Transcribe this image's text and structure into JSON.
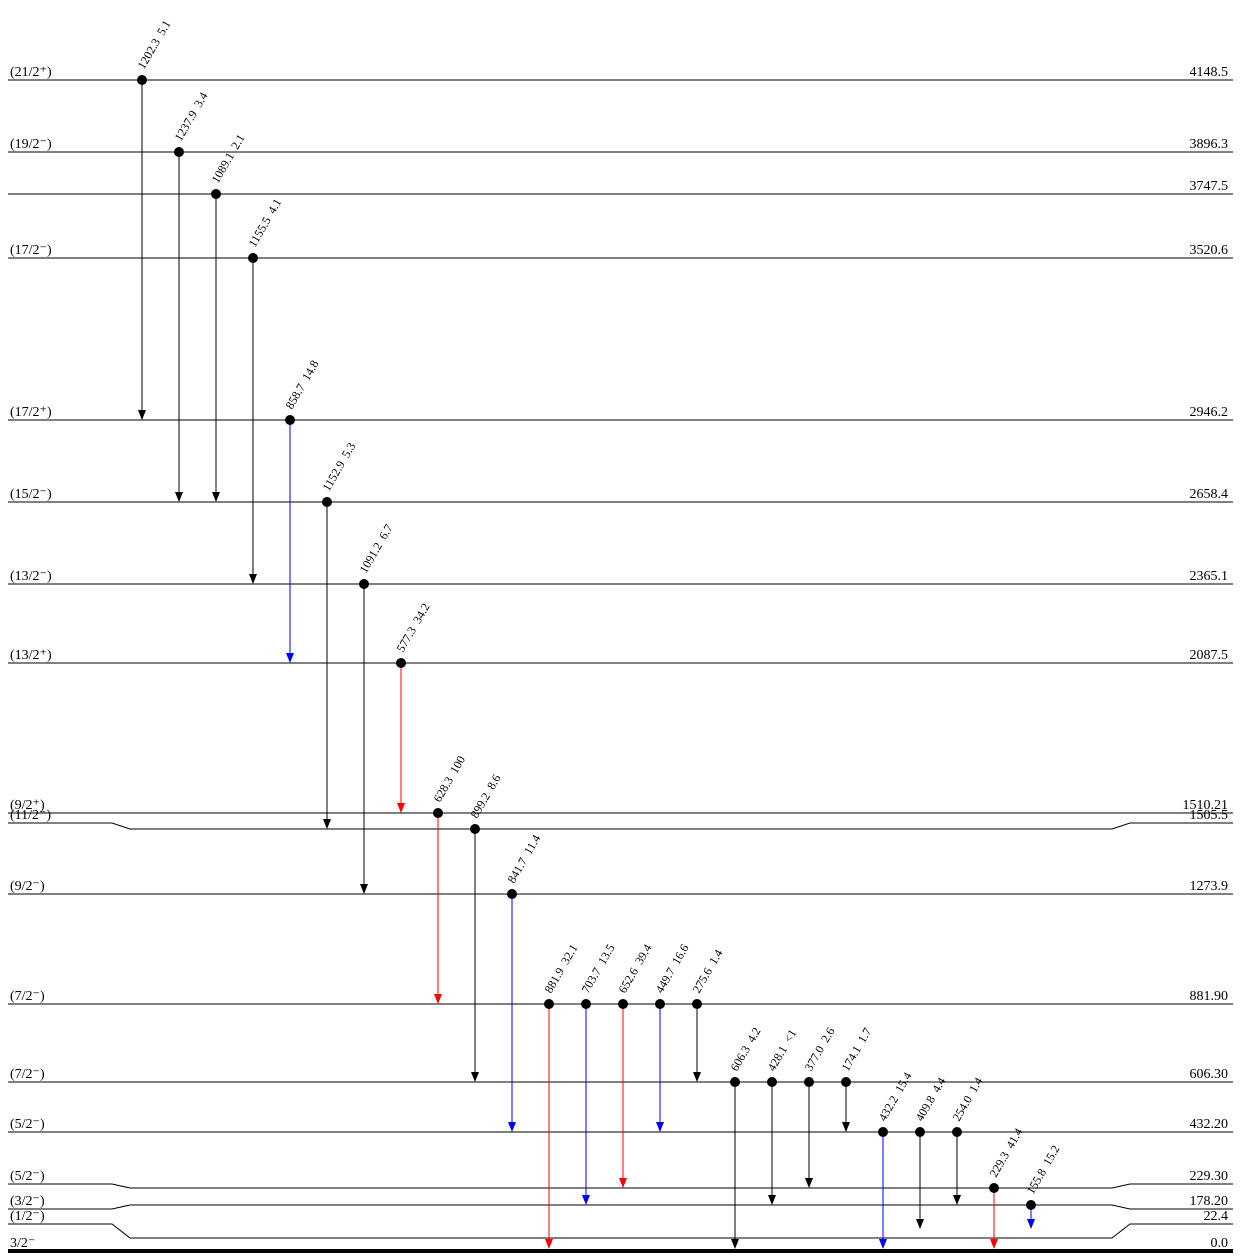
{
  "levels": [
    {
      "spin": "(21/2⁺)",
      "energy": "4148.5"
    },
    {
      "spin": "(19/2⁻)",
      "energy": "3896.3"
    },
    {
      "spin": "",
      "energy": "3747.5"
    },
    {
      "spin": "(17/2⁻)",
      "energy": "3520.6"
    },
    {
      "spin": "(17/2⁺)",
      "energy": "2946.2"
    },
    {
      "spin": "(15/2⁻)",
      "energy": "2658.4"
    },
    {
      "spin": "(13/2⁻)",
      "energy": "2365.1"
    },
    {
      "spin": "(13/2⁺)",
      "energy": "2087.5"
    },
    {
      "spin": "(9/2⁺)",
      "energy": "1510.21"
    },
    {
      "spin": "(11/2⁻)",
      "energy": "1505.5"
    },
    {
      "spin": "(9/2⁻)",
      "energy": "1273.9"
    },
    {
      "spin": "(7/2⁻)",
      "energy": "881.90"
    },
    {
      "spin": "(7/2⁻)",
      "energy": "606.30"
    },
    {
      "spin": "(5/2⁻)",
      "energy": "432.20"
    },
    {
      "spin": "(5/2⁻)",
      "energy": "229.30"
    },
    {
      "spin": "(3/2⁻)",
      "energy": "178.20"
    },
    {
      "spin": "(1/2⁻)",
      "energy": "22.4"
    },
    {
      "spin": "3/2⁻",
      "energy": "0.0"
    }
  ],
  "transitions": [
    {
      "energy": "1202.3",
      "intensity": "5.1",
      "from": "4148.5",
      "to": "2946.2",
      "color": "#000000"
    },
    {
      "energy": "1237.9",
      "intensity": "3.4",
      "from": "3896.3",
      "to": "2658.4",
      "color": "#000000"
    },
    {
      "energy": "1089.1",
      "intensity": "2.1",
      "from": "3747.5",
      "to": "2658.4",
      "color": "#000000"
    },
    {
      "energy": "1155.5",
      "intensity": "4.1",
      "from": "3520.6",
      "to": "2365.1",
      "color": "#000000"
    },
    {
      "energy": "858.7",
      "intensity": "14.8",
      "from": "2946.2",
      "to": "2087.5",
      "color": "#0000ff"
    },
    {
      "energy": "1152.9",
      "intensity": "5.3",
      "from": "2658.4",
      "to": "1505.5",
      "color": "#000000"
    },
    {
      "energy": "1091.2",
      "intensity": "6.7",
      "from": "2365.1",
      "to": "1273.9",
      "color": "#000000"
    },
    {
      "energy": "577.3",
      "intensity": "34.2",
      "from": "2087.5",
      "to": "1510.21",
      "color": "#ff0000"
    },
    {
      "energy": "628.3",
      "intensity": "100",
      "from": "1510.21",
      "to": "881.90",
      "color": "#ff0000"
    },
    {
      "energy": "899.2",
      "intensity": "8.6",
      "from": "1505.5",
      "to": "606.30",
      "color": "#000000"
    },
    {
      "energy": "841.7",
      "intensity": "11.4",
      "from": "1273.9",
      "to": "432.20",
      "color": "#0000ff"
    },
    {
      "energy": "881.9",
      "intensity": "32.1",
      "from": "881.90",
      "to": "0.0",
      "color": "#ff0000"
    },
    {
      "energy": "703.7",
      "intensity": "13.5",
      "from": "881.90",
      "to": "178.20",
      "color": "#0000ff"
    },
    {
      "energy": "652.6",
      "intensity": "39.4",
      "from": "881.90",
      "to": "229.30",
      "color": "#ff0000"
    },
    {
      "energy": "449.7",
      "intensity": "16.6",
      "from": "881.90",
      "to": "432.20",
      "color": "#0000ff"
    },
    {
      "energy": "275.6",
      "intensity": "1.4",
      "from": "881.90",
      "to": "606.30",
      "color": "#000000"
    },
    {
      "energy": "606.3",
      "intensity": "4.2",
      "from": "606.30",
      "to": "0.0",
      "color": "#000000"
    },
    {
      "energy": "428.1",
      "intensity": "<1",
      "from": "606.30",
      "to": "178.20",
      "color": "#000000"
    },
    {
      "energy": "377.0",
      "intensity": "2.6",
      "from": "606.30",
      "to": "229.30",
      "color": "#000000"
    },
    {
      "energy": "174.1",
      "intensity": "1.7",
      "from": "606.30",
      "to": "432.20",
      "color": "#000000"
    },
    {
      "energy": "432.2",
      "intensity": "15.4",
      "from": "432.20",
      "to": "0.0",
      "color": "#0000ff"
    },
    {
      "energy": "409.8",
      "intensity": "4.4",
      "from": "432.20",
      "to": "22.4",
      "color": "#000000"
    },
    {
      "energy": "254.0",
      "intensity": "1.4",
      "from": "432.20",
      "to": "178.20",
      "color": "#000000"
    },
    {
      "energy": "229.3",
      "intensity": "41.4",
      "from": "229.30",
      "to": "0.0",
      "color": "#ff0000"
    },
    {
      "energy": "155.8",
      "intensity": "15.2",
      "from": "178.20",
      "to": "22.4",
      "color": "#0000ff"
    }
  ]
}
